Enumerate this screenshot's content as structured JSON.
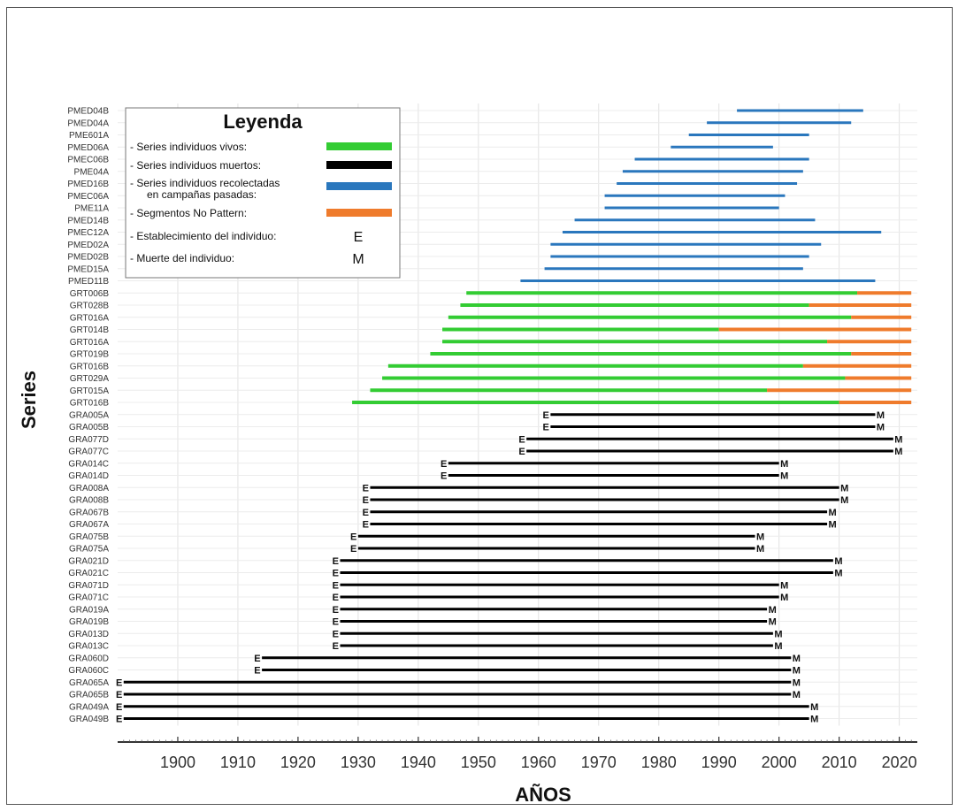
{
  "chart_data": {
    "type": "bar",
    "xlabel": "AÑOS",
    "ylabel": "Series",
    "xlim": [
      1890,
      2023
    ],
    "x_ticks": [
      1900,
      1910,
      1920,
      1930,
      1940,
      1950,
      1960,
      1970,
      1980,
      1990,
      2000,
      2010,
      2020
    ],
    "grid": true,
    "legend": {
      "title": "Leyenda",
      "placement": "top-left",
      "entries": [
        {
          "label": "- Series individuos vivos:",
          "color": "#33cc33"
        },
        {
          "label": "- Series individuos muertos:",
          "color": "#000000"
        },
        {
          "label": "- Series individuos recolectadas",
          "label2": "en campañas pasadas:",
          "color": "#2a77bd"
        },
        {
          "label": "- Segmentos No Pattern:",
          "color": "#ef7b2c"
        },
        {
          "label": "- Establecimiento del individuo:",
          "symbol": "E"
        },
        {
          "label": "- Muerte del individuo:",
          "symbol": "M"
        }
      ]
    },
    "colors": {
      "alive": "#33cc33",
      "dead": "#000000",
      "collected": "#2a77bd",
      "nopattern": "#ef7b2c"
    },
    "series": [
      {
        "name": "PMED04B",
        "kind": "collected",
        "start": 1993,
        "end": 2014
      },
      {
        "name": "PMED04A",
        "kind": "collected",
        "start": 1988,
        "end": 2012
      },
      {
        "name": "PME601A",
        "kind": "collected",
        "start": 1985,
        "end": 2005
      },
      {
        "name": "PMED06A",
        "kind": "collected",
        "start": 1982,
        "end": 1999
      },
      {
        "name": "PMEC06B",
        "kind": "collected",
        "start": 1976,
        "end": 2005
      },
      {
        "name": "PME04A",
        "kind": "collected",
        "start": 1974,
        "end": 2004
      },
      {
        "name": "PMED16B",
        "kind": "collected",
        "start": 1973,
        "end": 2003
      },
      {
        "name": "PMEC06A",
        "kind": "collected",
        "start": 1971,
        "end": 2001
      },
      {
        "name": "PME11A",
        "kind": "collected",
        "start": 1971,
        "end": 2000
      },
      {
        "name": "PMED14B",
        "kind": "collected",
        "start": 1966,
        "end": 2006
      },
      {
        "name": "PMEC12A",
        "kind": "collected",
        "start": 1964,
        "end": 2017
      },
      {
        "name": "PMED02A",
        "kind": "collected",
        "start": 1962,
        "end": 2007
      },
      {
        "name": "PMED02B",
        "kind": "collected",
        "start": 1962,
        "end": 2005
      },
      {
        "name": "PMED15A",
        "kind": "collected",
        "start": 1961,
        "end": 2004
      },
      {
        "name": "PMED11B",
        "kind": "collected",
        "start": 1957,
        "end": 2016
      },
      {
        "name": "GRT006B",
        "kind": "alive",
        "start": 1948,
        "end": 2022,
        "nopattern_start": 2013
      },
      {
        "name": "GRT028B",
        "kind": "alive",
        "start": 1947,
        "end": 2022,
        "nopattern_start": 2005
      },
      {
        "name": "GRT016A",
        "kind": "alive",
        "start": 1945,
        "end": 2022,
        "nopattern_start": 2012
      },
      {
        "name": "GRT014B",
        "kind": "alive",
        "start": 1944,
        "end": 2022,
        "nopattern_start": 1990
      },
      {
        "name": "GRT016A",
        "kind": "alive",
        "start": 1944,
        "end": 2022,
        "nopattern_start": 2008
      },
      {
        "name": "GRT019B",
        "kind": "alive",
        "start": 1942,
        "end": 2022,
        "nopattern_start": 2012
      },
      {
        "name": "GRT016B",
        "kind": "alive",
        "start": 1935,
        "end": 2022,
        "nopattern_start": 2004
      },
      {
        "name": "GRT029A",
        "kind": "alive",
        "start": 1934,
        "end": 2022,
        "nopattern_start": 2011
      },
      {
        "name": "GRT015A",
        "kind": "alive",
        "start": 1932,
        "end": 2022,
        "nopattern_start": 1998
      },
      {
        "name": "GRT016B",
        "kind": "alive",
        "start": 1929,
        "end": 2022,
        "nopattern_start": 2010
      },
      {
        "name": "GRA005A",
        "kind": "dead",
        "start": 1962,
        "end": 2016
      },
      {
        "name": "GRA005B",
        "kind": "dead",
        "start": 1962,
        "end": 2016
      },
      {
        "name": "GRA077D",
        "kind": "dead",
        "start": 1958,
        "end": 2019
      },
      {
        "name": "GRA077C",
        "kind": "dead",
        "start": 1958,
        "end": 2019
      },
      {
        "name": "GRA014C",
        "kind": "dead",
        "start": 1945,
        "end": 2000
      },
      {
        "name": "GRA014D",
        "kind": "dead",
        "start": 1945,
        "end": 2000
      },
      {
        "name": "GRA008A",
        "kind": "dead",
        "start": 1932,
        "end": 2010
      },
      {
        "name": "GRA008B",
        "kind": "dead",
        "start": 1932,
        "end": 2010
      },
      {
        "name": "GRA067B",
        "kind": "dead",
        "start": 1932,
        "end": 2008
      },
      {
        "name": "GRA067A",
        "kind": "dead",
        "start": 1932,
        "end": 2008
      },
      {
        "name": "GRA075B",
        "kind": "dead",
        "start": 1930,
        "end": 1996
      },
      {
        "name": "GRA075A",
        "kind": "dead",
        "start": 1930,
        "end": 1996
      },
      {
        "name": "GRA021D",
        "kind": "dead",
        "start": 1927,
        "end": 2009
      },
      {
        "name": "GRA021C",
        "kind": "dead",
        "start": 1927,
        "end": 2009
      },
      {
        "name": "GRA071D",
        "kind": "dead",
        "start": 1927,
        "end": 2000
      },
      {
        "name": "GRA071C",
        "kind": "dead",
        "start": 1927,
        "end": 2000
      },
      {
        "name": "GRA019A",
        "kind": "dead",
        "start": 1927,
        "end": 1998
      },
      {
        "name": "GRA019B",
        "kind": "dead",
        "start": 1927,
        "end": 1998
      },
      {
        "name": "GRA013D",
        "kind": "dead",
        "start": 1927,
        "end": 1999
      },
      {
        "name": "GRA013C",
        "kind": "dead",
        "start": 1927,
        "end": 1999
      },
      {
        "name": "GRA060D",
        "kind": "dead",
        "start": 1914,
        "end": 2002
      },
      {
        "name": "GRA060C",
        "kind": "dead",
        "start": 1914,
        "end": 2002
      },
      {
        "name": "GRA065A",
        "kind": "dead",
        "start": 1891,
        "end": 2002
      },
      {
        "name": "GRA065B",
        "kind": "dead",
        "start": 1891,
        "end": 2002
      },
      {
        "name": "GRA049A",
        "kind": "dead",
        "start": 1891,
        "end": 2005
      },
      {
        "name": "GRA049B",
        "kind": "dead",
        "start": 1891,
        "end": 2005
      }
    ]
  }
}
